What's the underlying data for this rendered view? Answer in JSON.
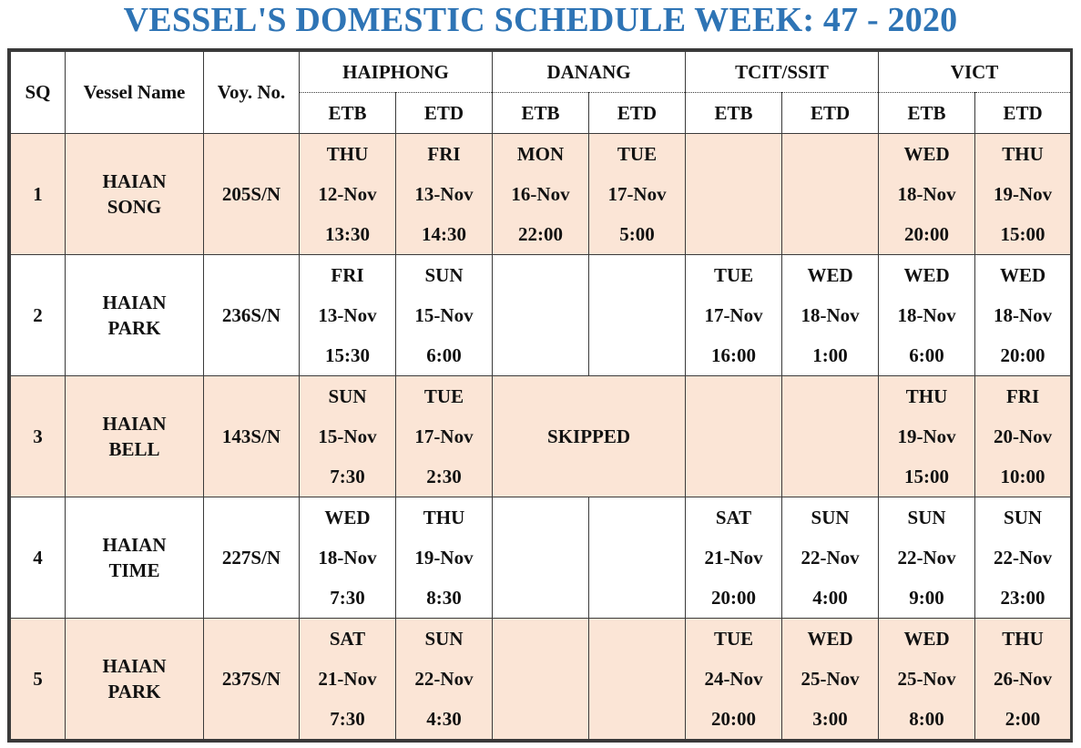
{
  "title": "VESSEL'S DOMESTIC SCHEDULE WEEK: 47 - 2020",
  "headers": {
    "sq": "SQ",
    "vessel": "Vessel Name",
    "voy": "Voy. No.",
    "ports": [
      "HAIPHONG",
      "DANANG",
      "TCIT/SSIT",
      "VICT"
    ],
    "etb": "ETB",
    "etd": "ETD"
  },
  "colors": {
    "title": "#2e74b5",
    "shade": "#fbe5d6",
    "border": "#3a3a3a"
  },
  "rows": [
    {
      "sq": "1",
      "vessel": [
        "HAIAN",
        "SONG"
      ],
      "voy": "205S/N",
      "shaded": true,
      "cells": [
        {
          "day": "THU",
          "date": "12-Nov",
          "time": "13:30"
        },
        {
          "day": "FRI",
          "date": "13-Nov",
          "time": "14:30"
        },
        {
          "day": "MON",
          "date": "16-Nov",
          "time": "22:00"
        },
        {
          "day": "TUE",
          "date": "17-Nov",
          "time": "5:00"
        },
        null,
        null,
        {
          "day": "WED",
          "date": "18-Nov",
          "time": "20:00"
        },
        {
          "day": "THU",
          "date": "19-Nov",
          "time": "15:00"
        }
      ]
    },
    {
      "sq": "2",
      "vessel": [
        "HAIAN",
        "PARK"
      ],
      "voy": "236S/N",
      "shaded": false,
      "cells": [
        {
          "day": "FRI",
          "date": "13-Nov",
          "time": "15:30"
        },
        {
          "day": "SUN",
          "date": "15-Nov",
          "time": "6:00"
        },
        null,
        null,
        {
          "day": "TUE",
          "date": "17-Nov",
          "time": "16:00"
        },
        {
          "day": "WED",
          "date": "18-Nov",
          "time": "1:00"
        },
        {
          "day": "WED",
          "date": "18-Nov",
          "time": "6:00"
        },
        {
          "day": "WED",
          "date": "18-Nov",
          "time": "20:00"
        }
      ]
    },
    {
      "sq": "3",
      "vessel": [
        "HAIAN",
        "BELL"
      ],
      "voy": "143S/N",
      "shaded": true,
      "skipped_text": "SKIPPED",
      "cells": [
        {
          "day": "SUN",
          "date": "15-Nov",
          "time": "7:30"
        },
        {
          "day": "TUE",
          "date": "17-Nov",
          "time": "2:30"
        },
        "SKIPPED",
        null,
        null,
        {
          "day": "THU",
          "date": "19-Nov",
          "time": "15:00"
        },
        {
          "day": "FRI",
          "date": "20-Nov",
          "time": "10:00"
        }
      ]
    },
    {
      "sq": "4",
      "vessel": [
        "HAIAN",
        "TIME"
      ],
      "voy": "227S/N",
      "shaded": false,
      "cells": [
        {
          "day": "WED",
          "date": "18-Nov",
          "time": "7:30"
        },
        {
          "day": "THU",
          "date": "19-Nov",
          "time": "8:30"
        },
        null,
        null,
        {
          "day": "SAT",
          "date": "21-Nov",
          "time": "20:00"
        },
        {
          "day": "SUN",
          "date": "22-Nov",
          "time": "4:00"
        },
        {
          "day": "SUN",
          "date": "22-Nov",
          "time": "9:00"
        },
        {
          "day": "SUN",
          "date": "22-Nov",
          "time": "23:00"
        }
      ]
    },
    {
      "sq": "5",
      "vessel": [
        "HAIAN",
        "PARK"
      ],
      "voy": "237S/N",
      "shaded": true,
      "cells": [
        {
          "day": "SAT",
          "date": "21-Nov",
          "time": "7:30"
        },
        {
          "day": "SUN",
          "date": "22-Nov",
          "time": "4:30"
        },
        null,
        null,
        {
          "day": "TUE",
          "date": "24-Nov",
          "time": "20:00"
        },
        {
          "day": "WED",
          "date": "25-Nov",
          "time": "3:00"
        },
        {
          "day": "WED",
          "date": "25-Nov",
          "time": "8:00"
        },
        {
          "day": "THU",
          "date": "26-Nov",
          "time": "2:00"
        }
      ]
    }
  ]
}
